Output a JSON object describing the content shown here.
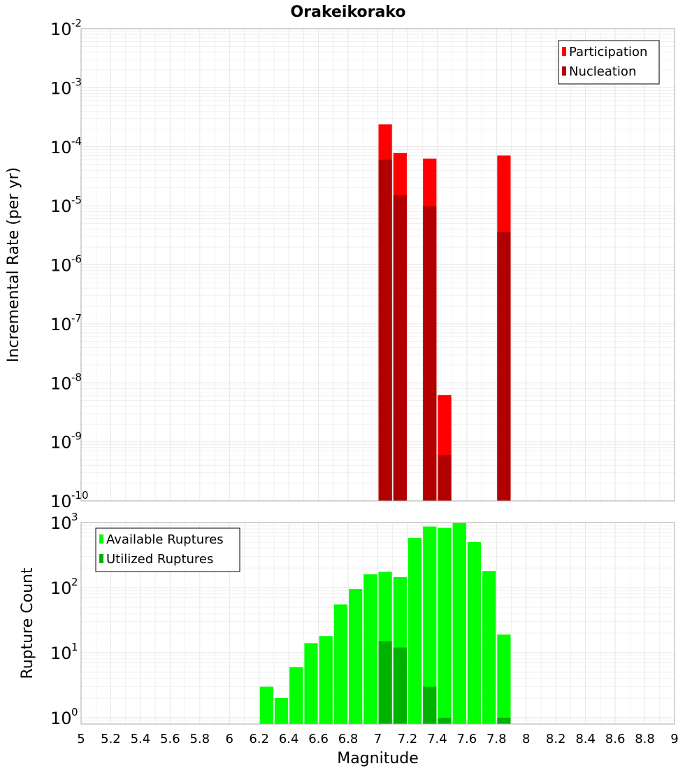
{
  "title": "Orakeikorako",
  "colors": {
    "participation": "#ff0000",
    "nucleation": "#b20000",
    "available": "#00ff00",
    "utilized": "#00b200",
    "grid": "#e6e6e6",
    "frame": "#aaaaaa"
  },
  "chart_data": [
    {
      "type": "bar",
      "title": "Orakeikorako",
      "xlabel": "",
      "ylabel": "Incremental Rate (per yr)",
      "yscale": "log",
      "ylim": [
        1e-10,
        0.01
      ],
      "xlim": [
        5,
        9
      ],
      "grid": true,
      "legend_position": "top-right",
      "y_ticks": [
        {
          "base": "10",
          "exp": "-2"
        },
        {
          "base": "10",
          "exp": "-3"
        },
        {
          "base": "10",
          "exp": "-4"
        },
        {
          "base": "10",
          "exp": "-5"
        },
        {
          "base": "10",
          "exp": "-6"
        },
        {
          "base": "10",
          "exp": "-7"
        },
        {
          "base": "10",
          "exp": "-8"
        },
        {
          "base": "10",
          "exp": "-9"
        },
        {
          "base": "10",
          "exp": "-10"
        }
      ],
      "x": [
        7.05,
        7.15,
        7.35,
        7.45,
        7.85
      ],
      "series": [
        {
          "name": "Participation",
          "color": "#ff0000",
          "values": [
            0.00024,
            7.8e-05,
            6.3e-05,
            6.2e-09,
            7.1e-05
          ]
        },
        {
          "name": "Nucleation",
          "color": "#b20000",
          "values": [
            6e-05,
            1.5e-05,
            9.8e-06,
            6e-10,
            3.6e-06
          ]
        }
      ]
    },
    {
      "type": "bar",
      "xlabel": "Magnitude",
      "ylabel": "Rupture Count",
      "yscale": "log",
      "ylim": [
        0.8,
        1000
      ],
      "xlim": [
        5,
        9
      ],
      "grid": true,
      "legend_position": "top-left",
      "y_ticks": [
        {
          "base": "10",
          "exp": "3"
        },
        {
          "base": "10",
          "exp": "2"
        },
        {
          "base": "10",
          "exp": "1"
        },
        {
          "base": "10",
          "exp": "0"
        }
      ],
      "x_ticks": [
        "5",
        "5.2",
        "5.4",
        "5.6",
        "5.8",
        "6",
        "6.2",
        "6.4",
        "6.6",
        "6.8",
        "7",
        "7.2",
        "7.4",
        "7.6",
        "7.8",
        "8",
        "8.2",
        "8.4",
        "8.6",
        "8.8",
        "9"
      ],
      "series": [
        {
          "name": "Available Ruptures",
          "color": "#00ff00",
          "x": [
            6.25,
            6.35,
            6.45,
            6.55,
            6.65,
            6.75,
            6.85,
            6.95,
            7.05,
            7.15,
            7.25,
            7.35,
            7.45,
            7.55,
            7.65,
            7.75,
            7.85
          ],
          "values": [
            3,
            2,
            6,
            14,
            18,
            55,
            95,
            160,
            175,
            145,
            580,
            870,
            830,
            980,
            500,
            180,
            19
          ]
        },
        {
          "name": "Utilized Ruptures",
          "color": "#00b200",
          "x": [
            7.05,
            7.15,
            7.35,
            7.45,
            7.85
          ],
          "values": [
            15,
            12,
            3,
            1,
            1
          ]
        }
      ]
    }
  ]
}
